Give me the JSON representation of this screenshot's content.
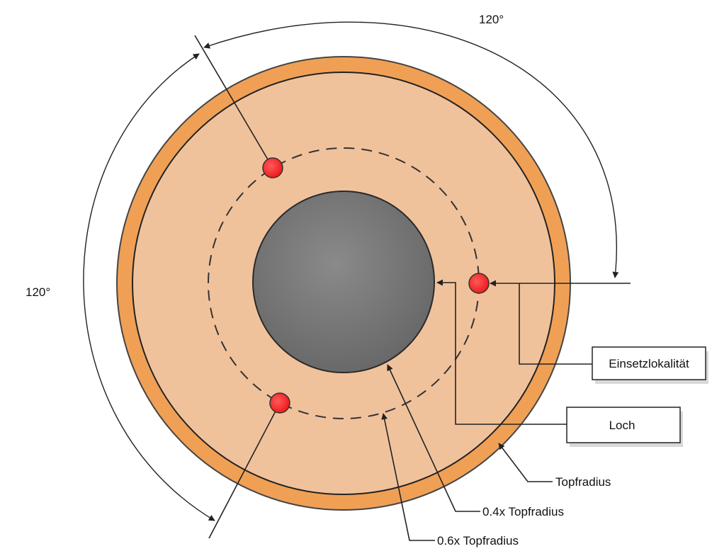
{
  "labels": {
    "angle_top": "120°",
    "angle_left": "120°",
    "einsetzlokalitaet": "Einsetzlokalität",
    "loch": "Loch",
    "topfradius": "Topfradius",
    "r04": "0.4x Topfradius",
    "r06": "0.6x Topfradius"
  },
  "colors": {
    "rim": "#f0a055",
    "face": "#f0c29c",
    "hole": "#737373",
    "marker": "#ff2a2a",
    "line": "#222222"
  }
}
